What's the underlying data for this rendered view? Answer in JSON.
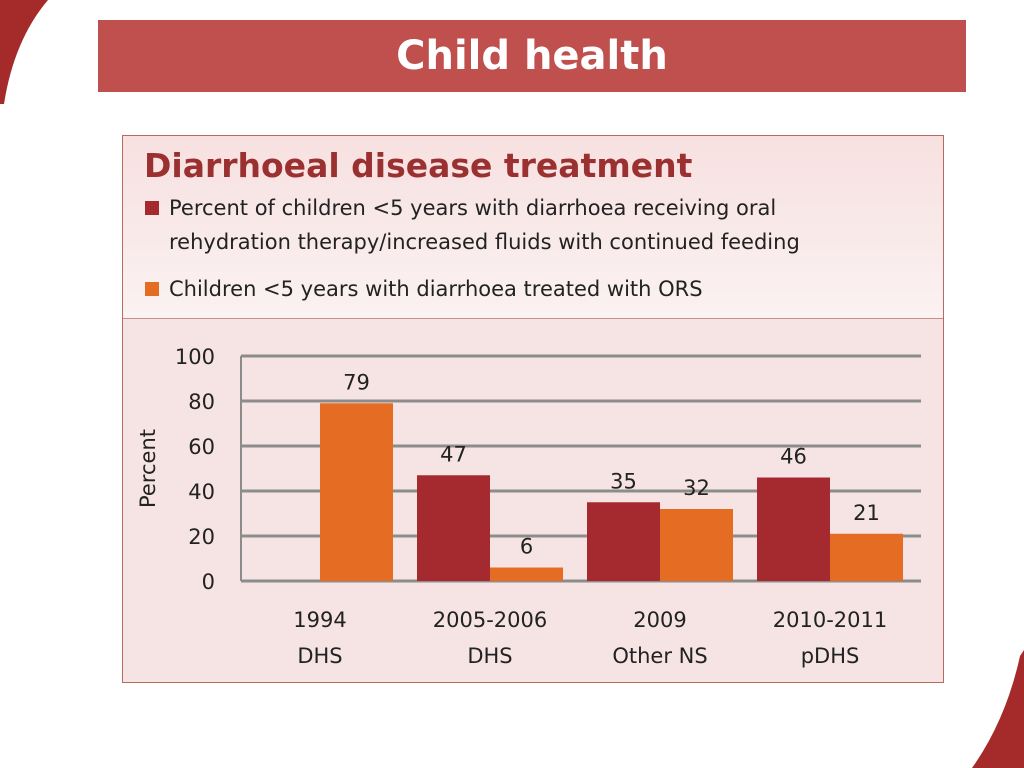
{
  "slide": {
    "title": "Child health"
  },
  "colors": {
    "title_bar": "#c0504d",
    "corner_accent": "#a52a2a",
    "series_ort": "#a52a2f",
    "series_ors": "#e46c23",
    "chart_title": "#9b3030",
    "gridline": "#888888"
  },
  "chart_data": {
    "type": "bar",
    "title": "Diarrhoeal disease treatment",
    "ylabel": "Percent",
    "ylim": [
      0,
      100
    ],
    "yticks": [
      0,
      20,
      40,
      60,
      80,
      100
    ],
    "grid": true,
    "legend_position": "top",
    "categories": [
      [
        "1994",
        "DHS"
      ],
      [
        "2005-2006",
        "DHS"
      ],
      [
        "2009",
        "Other NS"
      ],
      [
        "2010-2011",
        "pDHS"
      ]
    ],
    "series": [
      {
        "name_lines": [
          "Percent of children <5 years with diarrhoea receiving oral",
          "rehydration therapy/increased fluids with continued feeding"
        ],
        "color": "#a52a2f",
        "values": [
          null,
          47,
          35,
          46
        ]
      },
      {
        "name_lines": [
          "Children <5 years with diarrhoea treated with ORS"
        ],
        "color": "#e46c23",
        "values": [
          79,
          6,
          32,
          21
        ]
      }
    ]
  }
}
